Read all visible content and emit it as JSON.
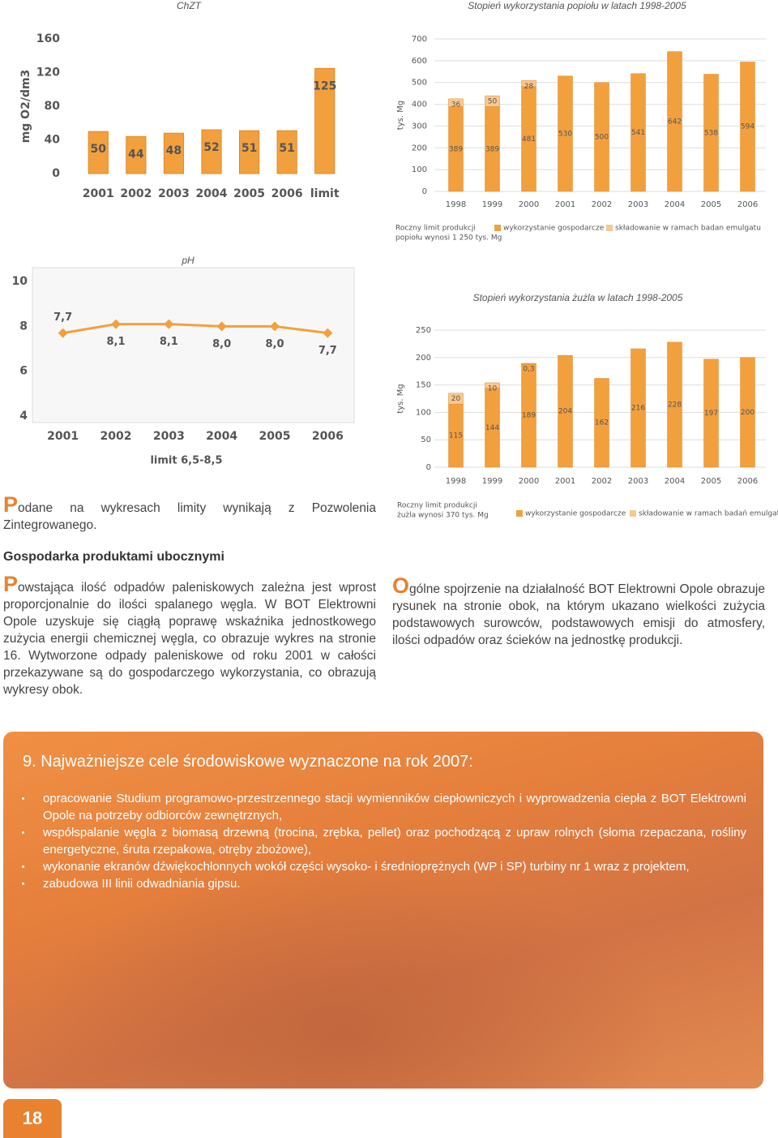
{
  "chart_data": [
    {
      "type": "bar",
      "title": "ChZT",
      "y_label": "mg O2/dm3",
      "categories": [
        "2001",
        "2002",
        "2003",
        "2004",
        "2005",
        "2006",
        "limit"
      ],
      "values": [
        50,
        44,
        48,
        52,
        51,
        51,
        125
      ],
      "color": "#f2a03d",
      "ylim": [
        0,
        160
      ],
      "yticks": [
        0,
        40,
        80,
        120,
        160
      ],
      "grid": false
    },
    {
      "type": "stacked_bar",
      "title": "Stopień wykorzystania popiołu w latach 1998-2005",
      "y_label": "tys. Mg",
      "categories": [
        "1998",
        "1999",
        "2000",
        "2001",
        "2002",
        "2003",
        "2004",
        "2005",
        "2006"
      ],
      "series": [
        {
          "name": "wykorzystanie gospodarcze",
          "color": "#f2a03d",
          "values": [
            389,
            389,
            481,
            530,
            500,
            541,
            642,
            538,
            594
          ]
        },
        {
          "name": "składowanie w ramach badan emulgatu",
          "color": "#f8c88e",
          "values": [
            36,
            50,
            28,
            null,
            null,
            null,
            null,
            null,
            null
          ]
        }
      ],
      "note": [
        "Roczny limit produkcji",
        "popiołu wynosi 1 250 tys. Mg"
      ],
      "ylim": [
        0,
        700
      ],
      "yticks": [
        0,
        100,
        200,
        300,
        400,
        500,
        600,
        700
      ],
      "grid": true
    },
    {
      "type": "line",
      "title": "pH",
      "subtitle": "limit 6,5-8,5",
      "categories": [
        "2001",
        "2002",
        "2003",
        "2004",
        "2005",
        "2006"
      ],
      "values": [
        7.7,
        8.1,
        8.1,
        8.0,
        8.0,
        7.7
      ],
      "value_labels": [
        "7,7",
        "8,1",
        "8,1",
        "8,0",
        "8,0",
        "7,7"
      ],
      "color": "#f2a03d",
      "ylim": [
        4,
        10
      ],
      "yticks": [
        4,
        6,
        8,
        10
      ],
      "grid": false
    },
    {
      "type": "stacked_bar",
      "title": "Stopień wykorzystania żużla w latach 1998-2005",
      "y_label": "tys. Mg",
      "categories": [
        "1998",
        "1999",
        "2000",
        "2001",
        "2002",
        "2003",
        "2004",
        "2005",
        "2006"
      ],
      "series": [
        {
          "name": "wykorzystanie gospodarcze",
          "color": "#f2a03d",
          "values": [
            115,
            144,
            189,
            204,
            162,
            216,
            228,
            197,
            200
          ]
        },
        {
          "name": "składowanie w ramach badań emulgatu",
          "color": "#f8c88e",
          "values": [
            20,
            10,
            0.3,
            null,
            null,
            null,
            null,
            null,
            null
          ],
          "value_labels": [
            "20",
            "10",
            "0,3",
            null,
            null,
            null,
            null,
            null,
            null
          ]
        }
      ],
      "note": [
        "Roczny limit produkcji",
        "żużla wynosi  370 tys. Mg"
      ],
      "ylim": [
        0,
        250
      ],
      "yticks": [
        0,
        50,
        100,
        150,
        200,
        250
      ],
      "grid": true
    }
  ],
  "intro": "Podane na wykresach limity wynikają z Pozwolenia Zintegrowanego.",
  "section_heading": "Gospodarka produktami ubocznymi",
  "body_left": "Powstająca ilość odpadów paleniskowych zależna jest wprost proporcjonalnie do ilości spalanego węgla. W BOT Elektrowni Opole uzyskuje się ciągłą poprawę wskaźnika jednostkowego zużycia energii chemicznej węgla, co obrazuje wykres na stronie 16. Wytworzone odpady paleniskowe od roku 2001 w całości przekazywane są do gospodarczego wykorzystania, co obrazują wykresy obok.",
  "body_right": "Ogólne spojrzenie na działalność BOT Elektrowni Opole obrazuje rysunek na stronie obok, na którym ukazano wielkości zużycia podstawowych surowców, podstawowych emisji do atmosfery, ilości odpadów oraz ścieków na jednostkę produkcji.",
  "goals": {
    "heading": "9. Najważniejsze cele środowiskowe wyznaczone na rok 2007:",
    "items": [
      "opracowanie Studium programowo-przestrzennego stacji wymienników ciepłowniczych i wyprowadzenia ciepła z BOT Elektrowni Opole na potrzeby odbiorców zewnętrznych,",
      "współspalanie węgla z biomasą drzewną (trocina, zrębka, pellet) oraz pochodzącą z upraw rolnych (słoma rzepaczana, rośliny energetyczne, śruta rzepakowa, otręby zbożowe),",
      "wykonanie ekranów dźwiękochłonnych wokół części wysoko- i średnioprężnych (WP i SP) turbiny nr 1 wraz z projektem,",
      "zabudowa III linii odwadniania gipsu."
    ]
  },
  "page_number": "18"
}
